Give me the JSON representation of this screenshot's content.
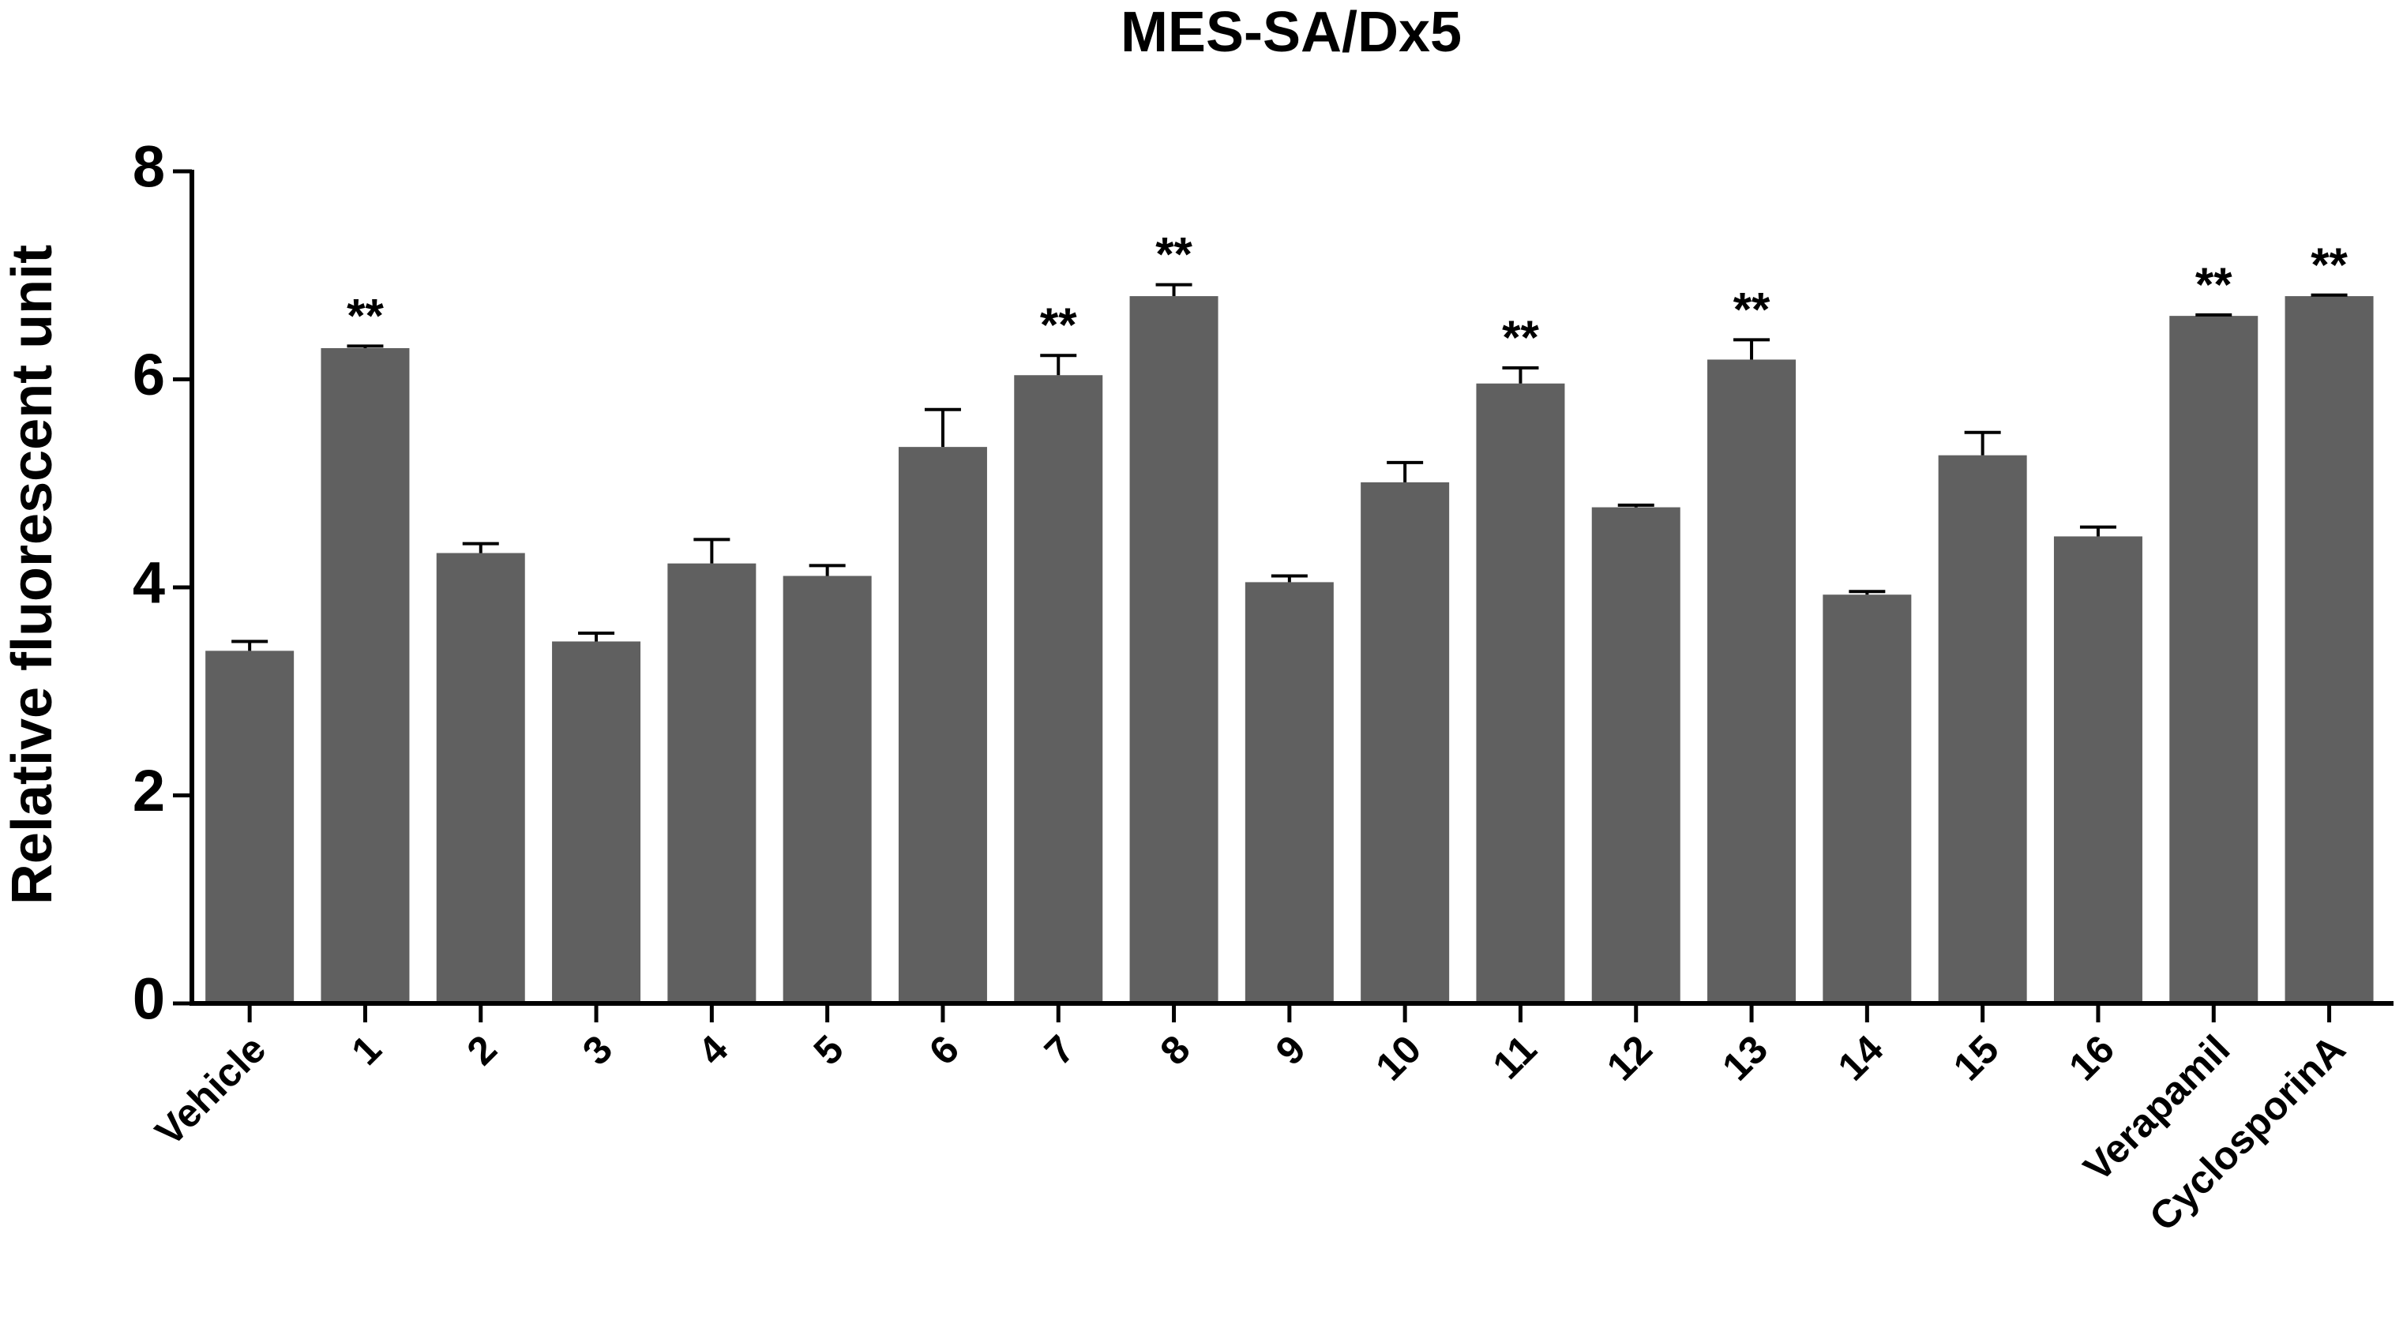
{
  "chart_data": {
    "type": "bar",
    "title": "MES-SA/Dx5",
    "y_label": "Relative fluorescent unit",
    "categories": [
      "Vehicle",
      "1",
      "2",
      "3",
      "4",
      "5",
      "6",
      "7",
      "8",
      "9",
      "10",
      "11",
      "12",
      "13",
      "14",
      "15",
      "16",
      "Verapamil",
      "CyclosporinA"
    ],
    "values": [
      3.39,
      6.3,
      4.33,
      3.48,
      4.23,
      4.11,
      5.35,
      6.04,
      6.8,
      4.05,
      5.01,
      5.96,
      4.77,
      6.19,
      3.93,
      5.27,
      4.49,
      6.61,
      6.8
    ],
    "errors": [
      0.09,
      0.02,
      0.09,
      0.08,
      0.23,
      0.1,
      0.36,
      0.19,
      0.11,
      0.06,
      0.19,
      0.15,
      0.02,
      0.19,
      0.03,
      0.22,
      0.09,
      0.01,
      0.01
    ],
    "annotations": [
      null,
      "**",
      null,
      null,
      null,
      null,
      null,
      "**",
      "**",
      null,
      null,
      "**",
      null,
      "**",
      null,
      null,
      null,
      "**",
      "**"
    ],
    "color": "#606060",
    "ylim": [
      0,
      8
    ],
    "yticks": [
      0,
      2,
      4,
      6,
      8
    ]
  }
}
